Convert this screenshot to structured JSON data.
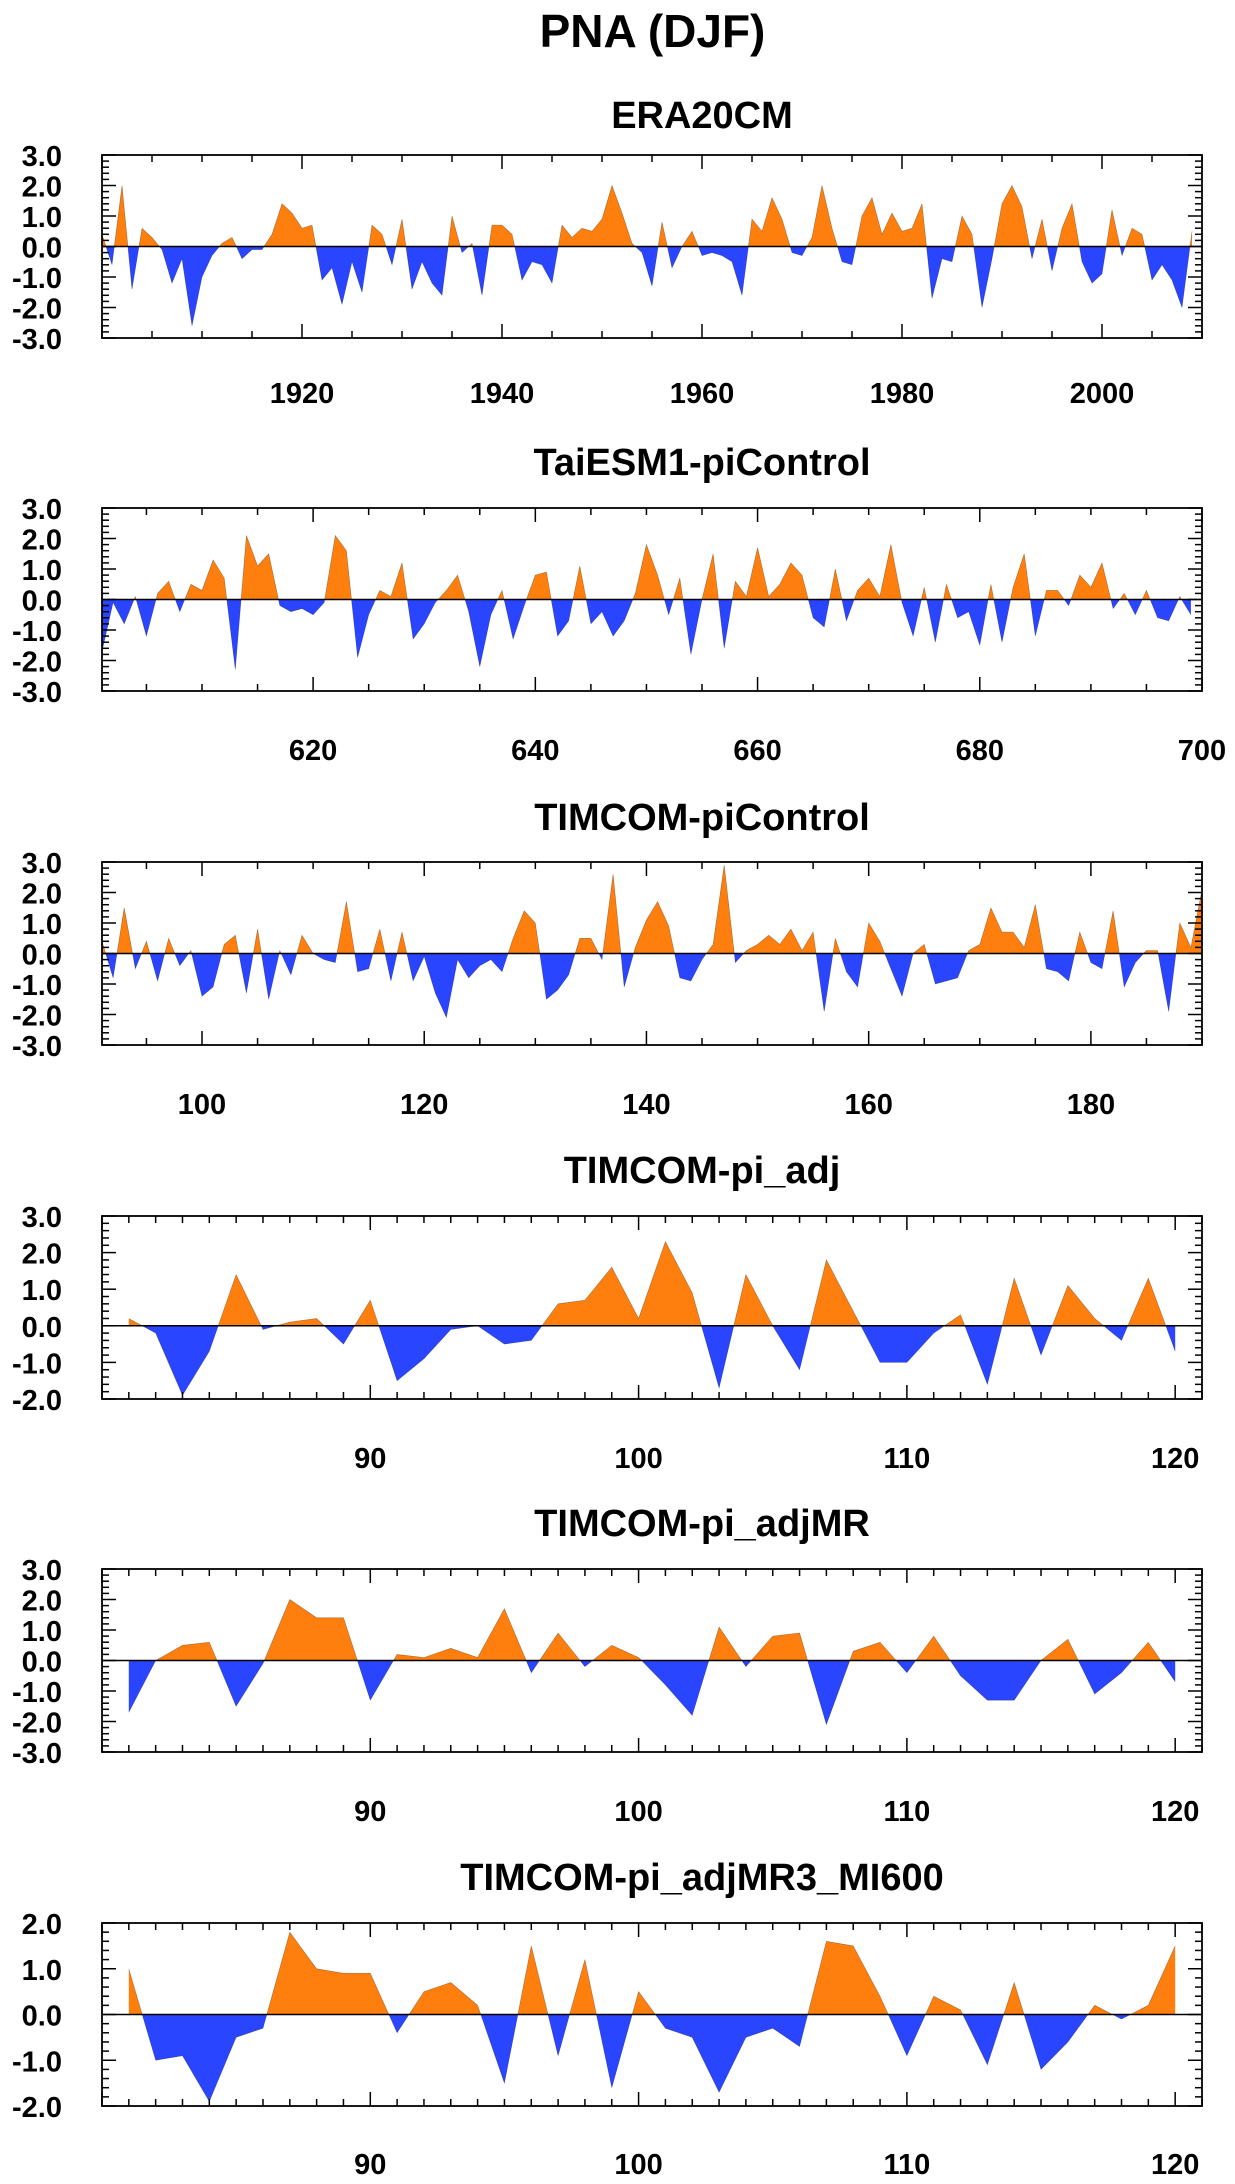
{
  "page_title": "PNA (DJF)",
  "colors": {
    "positive": "#ff7f0e",
    "negative": "#2a45ff",
    "axis": "#000000"
  },
  "chart_data": [
    {
      "type": "area",
      "title": "ERA20CM",
      "xlabel": "",
      "ylabel": "",
      "xlim": [
        1900,
        2010
      ],
      "ylim": [
        -3,
        3
      ],
      "xticks": [
        1920,
        1940,
        1960,
        1980,
        2000
      ],
      "yticks": [
        3.0,
        2.0,
        1.0,
        0.0,
        -1.0,
        -2.0,
        -3.0
      ],
      "ytick_labels": [
        "3.0",
        "2.0",
        "1.0",
        "0.0",
        "-1.0",
        "-2.0",
        "-3.0"
      ],
      "grid": false,
      "x_start": 1900,
      "values": [
        0.4,
        -0.6,
        2.0,
        -1.4,
        0.6,
        0.3,
        -0.1,
        -1.2,
        -0.4,
        -2.6,
        -1.0,
        -0.3,
        0.1,
        0.3,
        -0.4,
        -0.1,
        -0.1,
        0.4,
        1.4,
        1.1,
        0.6,
        0.7,
        -1.1,
        -0.7,
        -1.9,
        -0.5,
        -1.5,
        0.7,
        0.4,
        -0.6,
        0.9,
        -1.4,
        -0.5,
        -1.2,
        -1.6,
        1.0,
        -0.2,
        0.1,
        -1.6,
        0.7,
        0.7,
        0.4,
        -1.1,
        -0.5,
        -0.6,
        -1.2,
        0.7,
        0.3,
        0.6,
        0.5,
        0.9,
        2.0,
        1.1,
        0.1,
        -0.2,
        -1.3,
        0.8,
        -0.7,
        0.0,
        0.5,
        -0.3,
        -0.2,
        -0.3,
        -0.5,
        -1.6,
        0.9,
        0.5,
        1.6,
        0.9,
        -0.2,
        -0.3,
        0.3,
        2.0,
        0.6,
        -0.5,
        -0.6,
        1.0,
        1.6,
        0.4,
        1.1,
        0.5,
        0.6,
        1.4,
        -1.7,
        -0.4,
        -0.5,
        1.0,
        0.4,
        -2.0,
        -0.4,
        1.4,
        2.0,
        1.3,
        -0.4,
        0.9,
        -0.8,
        0.6,
        1.4,
        -0.5,
        -1.2,
        -0.9,
        1.2,
        -0.3,
        0.6,
        0.4,
        -1.1,
        -0.6,
        -1.1,
        -2.0,
        0.5
      ]
    },
    {
      "type": "area",
      "title": "TaiESM1-piControl",
      "xlabel": "",
      "ylabel": "",
      "xlim": [
        601,
        700
      ],
      "ylim": [
        -3,
        3
      ],
      "xticks": [
        620,
        640,
        660,
        680,
        700
      ],
      "yticks": [
        3.0,
        2.0,
        1.0,
        0.0,
        -1.0,
        -2.0,
        -3.0
      ],
      "ytick_labels": [
        "3.0",
        "2.0",
        "1.0",
        "0.0",
        "-1.0",
        "-2.0",
        "-3.0"
      ],
      "grid": false,
      "x_start": 601,
      "values": [
        -1.7,
        -0.1,
        -0.8,
        0.1,
        -1.2,
        0.2,
        0.6,
        -0.4,
        0.5,
        0.3,
        1.3,
        0.7,
        -2.3,
        2.1,
        1.1,
        1.5,
        -0.2,
        -0.4,
        -0.3,
        -0.5,
        -0.1,
        2.1,
        1.6,
        -1.9,
        -0.5,
        0.3,
        0.1,
        1.2,
        -1.3,
        -0.8,
        -0.1,
        0.3,
        0.8,
        -0.4,
        -2.2,
        -0.5,
        0.3,
        -1.3,
        -0.2,
        0.8,
        0.9,
        -1.2,
        -0.7,
        1.1,
        -0.8,
        -0.4,
        -1.2,
        -0.7,
        0.2,
        1.8,
        0.8,
        -0.5,
        0.7,
        -1.8,
        0.0,
        1.5,
        -1.6,
        0.6,
        0.1,
        1.7,
        0.1,
        0.5,
        1.2,
        0.8,
        -0.6,
        -0.9,
        1.0,
        -0.7,
        0.3,
        0.7,
        0.1,
        1.8,
        -0.1,
        -1.2,
        0.4,
        -1.4,
        0.5,
        -0.6,
        -0.4,
        -1.5,
        0.5,
        -1.4,
        0.4,
        1.5,
        -1.2,
        0.3,
        0.3,
        -0.2,
        0.8,
        0.4,
        1.2,
        -0.3,
        0.2,
        -0.5,
        0.3,
        -0.6,
        -0.7,
        0.1,
        -0.5
      ]
    },
    {
      "type": "area",
      "title": "TIMCOM-piControl",
      "xlabel": "",
      "ylabel": "",
      "xlim": [
        91,
        190
      ],
      "ylim": [
        -3,
        3
      ],
      "xticks": [
        100,
        120,
        140,
        160,
        180
      ],
      "yticks": [
        3.0,
        2.0,
        1.0,
        0.0,
        -1.0,
        -2.0,
        -3.0
      ],
      "ytick_labels": [
        "3.0",
        "2.0",
        "1.0",
        "0.0",
        "-1.0",
        "-2.0",
        "-3.0"
      ],
      "grid": false,
      "x_start": 91,
      "values": [
        0.4,
        -0.8,
        1.5,
        -0.5,
        0.4,
        -0.9,
        0.5,
        -0.4,
        0.1,
        -1.4,
        -1.1,
        0.3,
        0.6,
        -1.3,
        0.8,
        -1.5,
        0.1,
        -0.7,
        0.6,
        0.0,
        -0.2,
        -0.3,
        1.7,
        -0.6,
        -0.5,
        0.8,
        -0.9,
        0.7,
        -0.9,
        -0.1,
        -1.3,
        -2.1,
        -0.2,
        -0.8,
        -0.4,
        -0.2,
        -0.6,
        0.5,
        1.4,
        1.0,
        -1.5,
        -1.2,
        -0.7,
        0.5,
        0.5,
        -0.2,
        2.6,
        -1.1,
        0.2,
        1.1,
        1.7,
        0.9,
        -0.8,
        -0.9,
        -0.2,
        0.3,
        2.9,
        -0.3,
        0.1,
        0.3,
        0.6,
        0.3,
        0.8,
        0.1,
        0.7,
        -1.9,
        0.5,
        -0.6,
        -1.1,
        1.0,
        0.4,
        -0.5,
        -1.4,
        0.0,
        0.3,
        -1.0,
        -0.9,
        -0.8,
        0.1,
        0.3,
        1.5,
        0.7,
        0.7,
        0.2,
        1.6,
        -0.5,
        -0.6,
        -0.9,
        0.7,
        -0.3,
        -0.5,
        1.4,
        -1.1,
        -0.3,
        0.1,
        0.1,
        -1.9,
        1.0,
        0.2,
        2.1
      ]
    },
    {
      "type": "area",
      "title": "TIMCOM-pi_adj",
      "xlabel": "",
      "ylabel": "",
      "xlim": [
        80,
        121
      ],
      "ylim": [
        -2,
        3
      ],
      "xticks": [
        90,
        100,
        110,
        120
      ],
      "yticks": [
        3.0,
        2.0,
        1.0,
        0.0,
        -1.0,
        -2.0
      ],
      "ytick_labels": [
        "3.0",
        "2.0",
        "1.0",
        "0.0",
        "-1.0",
        "-2.0"
      ],
      "grid": false,
      "x_start": 81,
      "values": [
        0.2,
        -0.2,
        -1.9,
        -0.7,
        1.4,
        -0.1,
        0.1,
        0.2,
        -0.5,
        0.7,
        -1.5,
        -0.9,
        -0.1,
        0.0,
        -0.5,
        -0.4,
        0.6,
        0.7,
        1.6,
        0.2,
        2.3,
        0.9,
        -1.7,
        1.4,
        0.0,
        -1.2,
        1.8,
        0.4,
        -1.0,
        -1.0,
        -0.2,
        0.3,
        -1.6,
        1.3,
        -0.8,
        1.1,
        0.2,
        -0.4,
        1.3,
        -0.7
      ]
    },
    {
      "type": "area",
      "title": "TIMCOM-pi_adjMR",
      "xlabel": "",
      "ylabel": "",
      "xlim": [
        80,
        121
      ],
      "ylim": [
        -3,
        3
      ],
      "xticks": [
        90,
        100,
        110,
        120
      ],
      "yticks": [
        3.0,
        2.0,
        1.0,
        0.0,
        -1.0,
        -2.0,
        -3.0
      ],
      "ytick_labels": [
        "3.0",
        "2.0",
        "1.0",
        "0.0",
        "-1.0",
        "-2.0",
        "-3.0"
      ],
      "grid": false,
      "x_start": 81,
      "values": [
        -1.7,
        0.0,
        0.5,
        0.6,
        -1.5,
        -0.1,
        2.0,
        1.4,
        1.4,
        -1.3,
        0.2,
        0.1,
        0.4,
        0.1,
        1.7,
        -0.4,
        0.9,
        -0.2,
        0.5,
        0.1,
        -0.8,
        -1.8,
        1.1,
        -0.2,
        0.8,
        0.9,
        -2.1,
        0.3,
        0.6,
        -0.4,
        0.8,
        -0.5,
        -1.3,
        -1.3,
        0.0,
        0.7,
        -1.1,
        -0.4,
        0.6,
        -0.7
      ]
    },
    {
      "type": "area",
      "title": "TIMCOM-pi_adjMR3_MI600",
      "xlabel": "",
      "ylabel": "",
      "xlim": [
        80,
        121
      ],
      "ylim": [
        -2,
        2
      ],
      "xticks": [
        90,
        100,
        110,
        120
      ],
      "yticks": [
        2.0,
        1.0,
        0.0,
        -1.0,
        -2.0
      ],
      "ytick_labels": [
        "2.0",
        "1.0",
        "0.0",
        "-1.0",
        "-2.0"
      ],
      "grid": false,
      "x_start": 81,
      "values": [
        1.0,
        -1.0,
        -0.9,
        -1.9,
        -0.5,
        -0.3,
        1.8,
        1.0,
        0.9,
        0.9,
        -0.4,
        0.5,
        0.7,
        0.2,
        -1.5,
        1.5,
        -0.9,
        1.2,
        -1.6,
        0.5,
        -0.3,
        -0.5,
        -1.7,
        -0.5,
        -0.3,
        -0.7,
        1.6,
        1.5,
        0.4,
        -0.9,
        0.4,
        0.1,
        -1.1,
        0.7,
        -1.2,
        -0.6,
        0.2,
        -0.1,
        0.2,
        1.5
      ]
    }
  ]
}
